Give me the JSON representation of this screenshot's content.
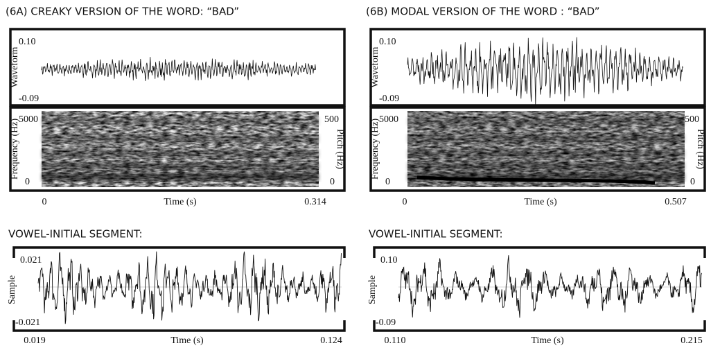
{
  "panels": [
    {
      "title": "(6A) CREAKY VERSION OF THE WORD: “BAD”",
      "waveform_label": "Waveform",
      "wave_top": "0.10",
      "wave_bottom": "-0.09",
      "frequency_label": "Frequency (Hz)",
      "frequency_top": "5000",
      "frequency_bottom": "0",
      "pitch_label": "Pitch (Hz)",
      "pitch_top": "500",
      "pitch_bottom": "0",
      "time_start": "0",
      "time_label": "Time (s)",
      "time_end": "0.314",
      "segment_title": "VOWEL-INITIAL SEGMENT:",
      "sample_label": "Sample",
      "sample_top": "0.021",
      "sample_bottom": "-0.021",
      "segment_time_start": "0.019",
      "segment_time_label": "Time (s)",
      "segment_time_end": "0.124"
    },
    {
      "title": "(6B) MODAL VERSION OF THE WORD : “BAD”",
      "waveform_label": "Waveform",
      "wave_top": "0.10",
      "wave_bottom": "-0.09",
      "frequency_label": "Frequency (Hz)",
      "frequency_top": "5000",
      "frequency_bottom": "0",
      "pitch_label": "Pitch (Hz)",
      "pitch_top": "500",
      "pitch_bottom": "0",
      "time_start": "0",
      "time_label": "Time (s)",
      "time_end": "0.507",
      "segment_title": "VOWEL-INITIAL SEGMENT:",
      "sample_label": "Sample",
      "sample_top": "0.10",
      "sample_bottom": "-0.09",
      "segment_time_start": "0.110",
      "segment_time_label": "Time (s)",
      "segment_time_end": "0.215"
    }
  ]
}
